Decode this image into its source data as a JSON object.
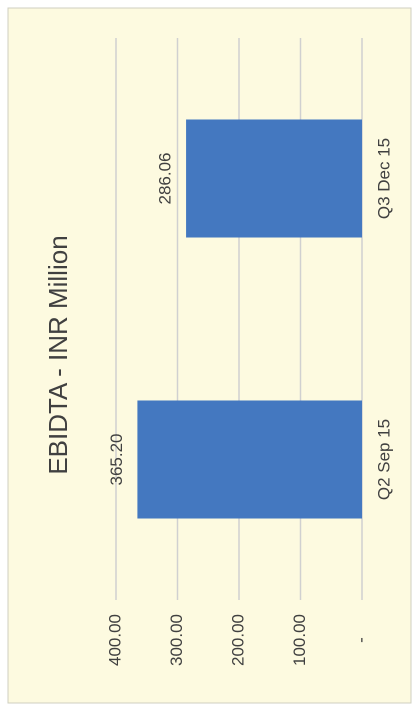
{
  "chart_data": {
    "type": "bar",
    "orientation": "rotated",
    "title": "EBIDTA - INR Million",
    "categories": [
      "Q2 Sep 15",
      "Q3 Dec 15"
    ],
    "values": [
      365.2,
      286.06
    ],
    "value_labels": [
      "365.20",
      "286.06"
    ],
    "color": "#4478c0",
    "ylim": [
      0,
      400
    ],
    "yticks": [
      {
        "value": 0,
        "label": "-"
      },
      {
        "value": 100,
        "label": "100.00"
      },
      {
        "value": 200,
        "label": "200.00"
      },
      {
        "value": 300,
        "label": "300.00"
      },
      {
        "value": 400,
        "label": "400.00"
      }
    ],
    "grid": true
  }
}
